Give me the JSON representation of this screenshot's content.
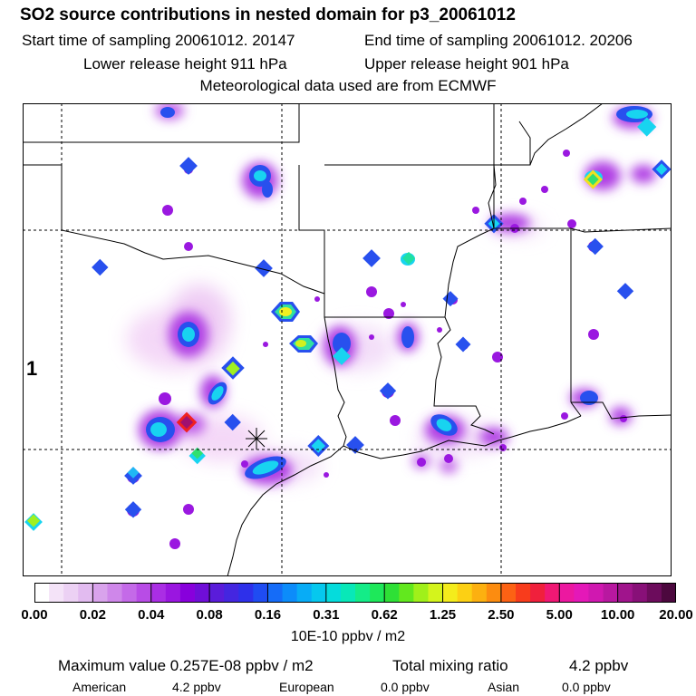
{
  "header": {
    "title": "SO2 source contributions in nested domain for p3_20061012",
    "start_time": "Start time of sampling 20061012. 20147",
    "end_time": "End time of sampling 20061012. 20206",
    "lower_height": "Lower release height  911 hPa",
    "upper_height": "Upper release height  901 hPa",
    "met_data": "Meteorological data used are from ECMWF"
  },
  "map": {
    "region_label": "1",
    "release_site_marker": "asterisk"
  },
  "colorbar": {
    "tick_labels": [
      "0.00",
      "0.02",
      "0.04",
      "0.08",
      "0.16",
      "0.31",
      "0.62",
      "1.25",
      "2.50",
      "5.00",
      "10.00",
      "20.00"
    ],
    "units": "10E-10 ppbv / m2",
    "colors": [
      "#ffffff",
      "#f4e3f8",
      "#ecd1f4",
      "#e2bbf0",
      "#d9a3ec",
      "#cf87ea",
      "#c46ae8",
      "#b84ce6",
      "#aa2ee4",
      "#9a16e0",
      "#8800dc",
      "#6f0ed8",
      "#5a1cda",
      "#4426e0",
      "#2e30ea",
      "#1f4cf2",
      "#156cf8",
      "#0c8cfa",
      "#08acf6",
      "#06c8ee",
      "#05dcdc",
      "#08e8b8",
      "#14ec88",
      "#1ee85a",
      "#2ee036",
      "#62e81e",
      "#a0f01a",
      "#d4f41c",
      "#f4ec1c",
      "#fcd014",
      "#fcb010",
      "#fc8c10",
      "#fc6214",
      "#f83c1c",
      "#f0203c",
      "#f01874",
      "#ec18a0",
      "#e418b8",
      "#d018b0",
      "#b818a0",
      "#a0148c",
      "#881078",
      "#6c0c5c",
      "#4c083e"
    ]
  },
  "footer": {
    "max_label": "Maximum value  0.257E-08 ppbv / m2",
    "total_label": "Total mixing ratio",
    "total_value": "4.2 ppbv",
    "american_label": "American",
    "american_value": "4.2 ppbv",
    "european_label": "European",
    "european_value": "0.0 ppbv",
    "asian_label": "Asian",
    "asian_value": "0.0 ppbv"
  }
}
